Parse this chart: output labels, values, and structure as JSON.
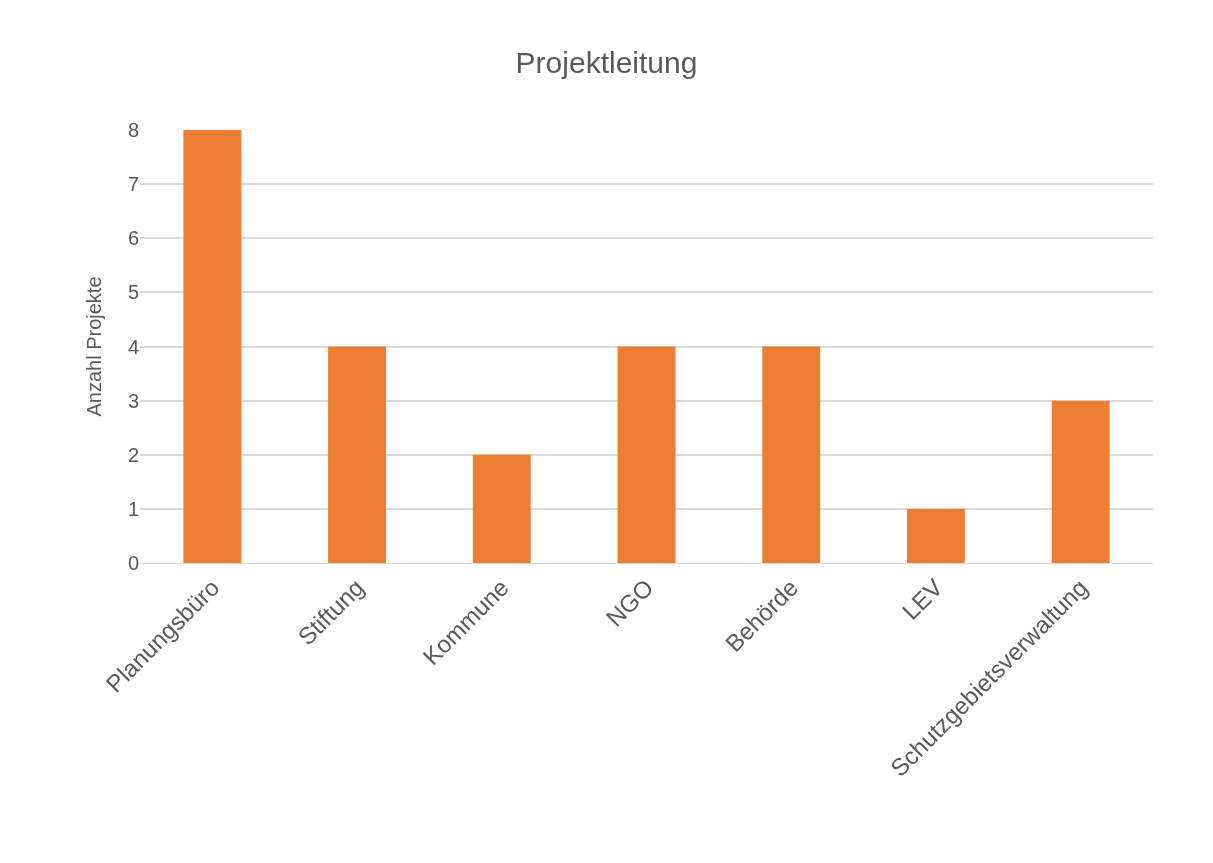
{
  "chart_data": {
    "type": "bar",
    "title": "Projektleitung",
    "ylabel": "Anzahl Projekte",
    "categories": [
      "Planungsbüro",
      "Stiftung",
      "Kommune",
      "NGO",
      "Behörde",
      "LEV",
      "Schutzgebietsverwaltung"
    ],
    "values": [
      8,
      4,
      2,
      4,
      4,
      1,
      3
    ],
    "color": "#ed7d31",
    "ylim": [
      0,
      8
    ],
    "yticks": [
      0,
      1,
      2,
      3,
      4,
      5,
      6,
      7,
      8
    ],
    "grid": "y"
  }
}
